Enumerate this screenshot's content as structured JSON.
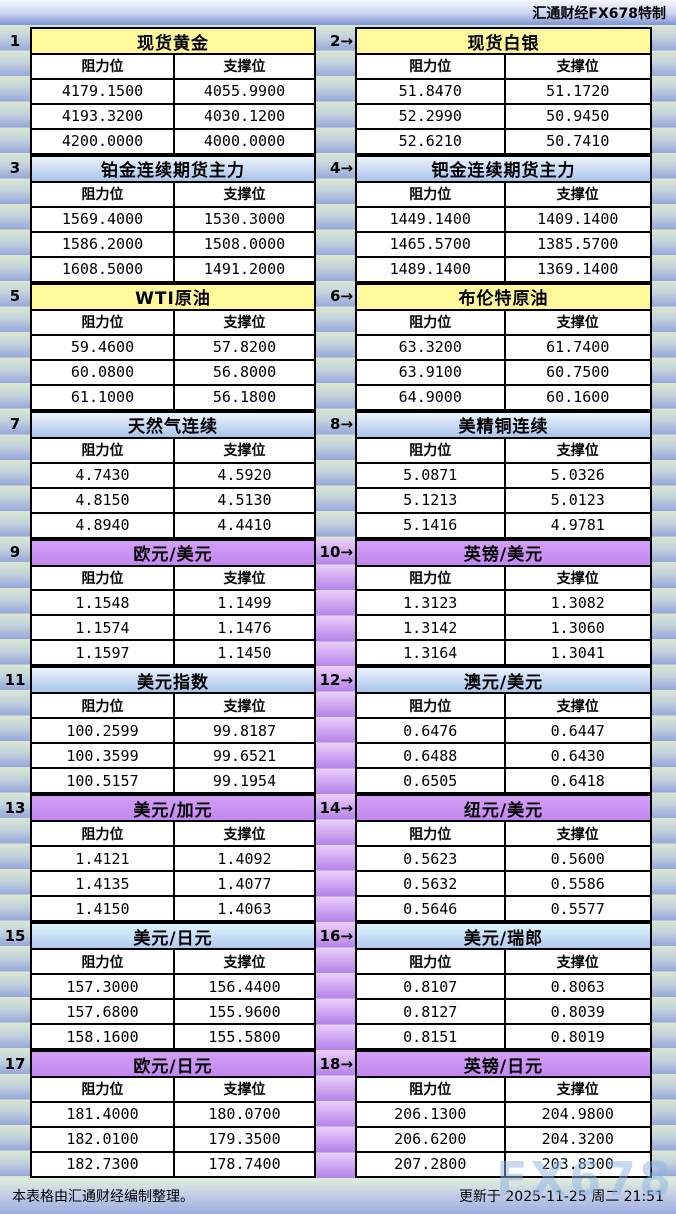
{
  "header": {
    "brand": "汇通财经FX678特制"
  },
  "labels": {
    "resistance": "阻力位",
    "support": "支撑位"
  },
  "tables": [
    {
      "index_label": "1",
      "title": "现货黄金",
      "style": "yellow",
      "rows": [
        [
          "4179.1500",
          "4055.9900"
        ],
        [
          "4193.3200",
          "4030.1200"
        ],
        [
          "4200.0000",
          "4000.0000"
        ]
      ]
    },
    {
      "index_label": "2→",
      "title": "现货白银",
      "style": "yellow",
      "rows": [
        [
          "51.8470",
          "51.1720"
        ],
        [
          "52.2990",
          "50.9450"
        ],
        [
          "52.6210",
          "50.7410"
        ]
      ]
    },
    {
      "index_label": "3",
      "title": "铂金连续期货主力",
      "style": "blue",
      "rows": [
        [
          "1569.4000",
          "1530.3000"
        ],
        [
          "1586.2000",
          "1508.0000"
        ],
        [
          "1608.5000",
          "1491.2000"
        ]
      ]
    },
    {
      "index_label": "4→",
      "title": "钯金连续期货主力",
      "style": "blue",
      "rows": [
        [
          "1449.1400",
          "1409.1400"
        ],
        [
          "1465.5700",
          "1385.5700"
        ],
        [
          "1489.1400",
          "1369.1400"
        ]
      ]
    },
    {
      "index_label": "5",
      "title": "WTI原油",
      "style": "yellow",
      "rows": [
        [
          "59.4600",
          "57.8200"
        ],
        [
          "60.0800",
          "56.8000"
        ],
        [
          "61.1000",
          "56.1800"
        ]
      ]
    },
    {
      "index_label": "6→",
      "title": "布伦特原油",
      "style": "yellow",
      "rows": [
        [
          "63.3200",
          "61.7400"
        ],
        [
          "63.9100",
          "60.7500"
        ],
        [
          "64.9000",
          "60.1600"
        ]
      ]
    },
    {
      "index_label": "7",
      "title": "天然气连续",
      "style": "blue",
      "rows": [
        [
          "4.7430",
          "4.5920"
        ],
        [
          "4.8150",
          "4.5130"
        ],
        [
          "4.8940",
          "4.4410"
        ]
      ]
    },
    {
      "index_label": "8→",
      "title": "美精铜连续",
      "style": "blue",
      "rows": [
        [
          "5.0871",
          "5.0326"
        ],
        [
          "5.1213",
          "5.0123"
        ],
        [
          "5.1416",
          "4.9781"
        ]
      ]
    },
    {
      "index_label": "9",
      "title": "欧元/美元",
      "style": "purple",
      "rows": [
        [
          "1.1548",
          "1.1499"
        ],
        [
          "1.1574",
          "1.1476"
        ],
        [
          "1.1597",
          "1.1450"
        ]
      ]
    },
    {
      "index_label": "10→",
      "title": "英镑/美元",
      "style": "purple",
      "rows": [
        [
          "1.3123",
          "1.3082"
        ],
        [
          "1.3142",
          "1.3060"
        ],
        [
          "1.3164",
          "1.3041"
        ]
      ]
    },
    {
      "index_label": "11",
      "title": "美元指数",
      "style": "blue",
      "rows": [
        [
          "100.2599",
          "99.8187"
        ],
        [
          "100.3599",
          "99.6521"
        ],
        [
          "100.5157",
          "99.1954"
        ]
      ]
    },
    {
      "index_label": "12→",
      "title": "澳元/美元",
      "style": "blue",
      "rows": [
        [
          "0.6476",
          "0.6447"
        ],
        [
          "0.6488",
          "0.6430"
        ],
        [
          "0.6505",
          "0.6418"
        ]
      ]
    },
    {
      "index_label": "13",
      "title": "美元/加元",
      "style": "purple",
      "rows": [
        [
          "1.4121",
          "1.4092"
        ],
        [
          "1.4135",
          "1.4077"
        ],
        [
          "1.4150",
          "1.4063"
        ]
      ]
    },
    {
      "index_label": "14→",
      "title": "纽元/美元",
      "style": "purple",
      "rows": [
        [
          "0.5623",
          "0.5600"
        ],
        [
          "0.5632",
          "0.5586"
        ],
        [
          "0.5646",
          "0.5577"
        ]
      ]
    },
    {
      "index_label": "15",
      "title": "美元/日元",
      "style": "cyan",
      "rows": [
        [
          "157.3000",
          "156.4400"
        ],
        [
          "157.6800",
          "155.9600"
        ],
        [
          "158.1600",
          "155.5800"
        ]
      ]
    },
    {
      "index_label": "16→",
      "title": "美元/瑞郎",
      "style": "cyan",
      "rows": [
        [
          "0.8107",
          "0.8063"
        ],
        [
          "0.8127",
          "0.8039"
        ],
        [
          "0.8151",
          "0.8019"
        ]
      ]
    },
    {
      "index_label": "17",
      "title": "欧元/日元",
      "style": "purple",
      "rows": [
        [
          "181.4000",
          "180.0700"
        ],
        [
          "182.0100",
          "179.3500"
        ],
        [
          "182.7300",
          "178.7400"
        ]
      ]
    },
    {
      "index_label": "18→",
      "title": "英镑/日元",
      "style": "purple",
      "rows": [
        [
          "206.1300",
          "204.9800"
        ],
        [
          "206.6200",
          "204.3200"
        ],
        [
          "207.2800",
          "203.8300"
        ]
      ]
    }
  ],
  "footer": {
    "left_note": "本表格由汇通财经编制整理。",
    "update_time": "更新于 2025-11-25 周二 21:51"
  },
  "watermark": "FX678",
  "colors": {
    "yellow_header": "#FFF99B",
    "blue_header": "#A9C3EA",
    "purple_header": "#C287EF",
    "cyan_header": "#B2C9EE",
    "stripe_green": "#D9E7D1",
    "stripe_blue": "#97A6DB"
  }
}
